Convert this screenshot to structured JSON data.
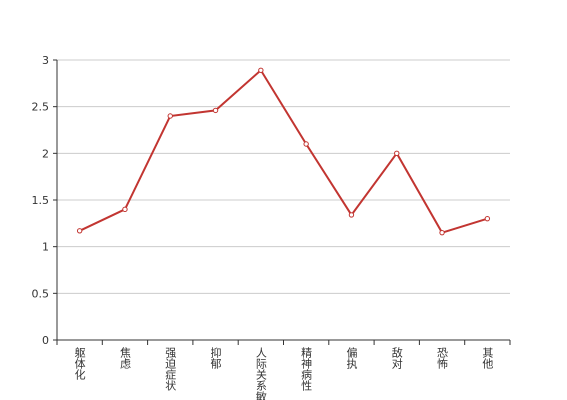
{
  "chart_data": {
    "type": "line",
    "categories": [
      "躯体化",
      "焦虑",
      "强迫症状",
      "抑郁",
      "人际关系敏感",
      "精神病性",
      "偏执",
      "敌对",
      "恐怖",
      "其他"
    ],
    "values": [
      1.17,
      1.4,
      2.4,
      2.46,
      2.89,
      2.1,
      1.34,
      2.0,
      1.15,
      1.3
    ],
    "color": "#c23531",
    "ylim": [
      0,
      3
    ],
    "yticks": [
      0,
      0.5,
      1,
      1.5,
      2,
      2.5,
      3
    ],
    "grid": true
  }
}
